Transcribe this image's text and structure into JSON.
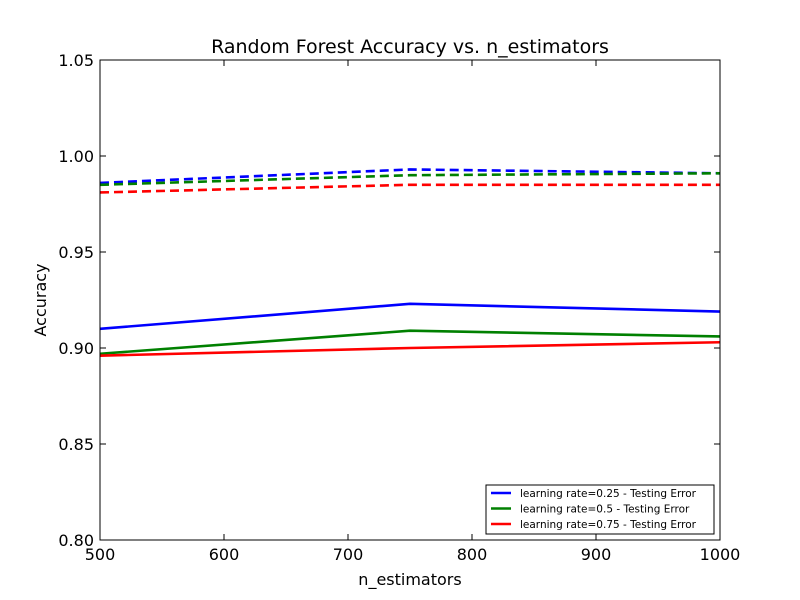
{
  "chart_data": {
    "type": "line",
    "title": "Random Forest Accuracy vs. n_estimators",
    "xlabel": "n_estimators",
    "ylabel": "Accuracy",
    "xlim": [
      500,
      1000
    ],
    "ylim": [
      0.8,
      1.05
    ],
    "xticks": [
      500,
      600,
      700,
      800,
      900,
      1000
    ],
    "yticks": [
      0.8,
      0.85,
      0.9,
      0.95,
      1.0,
      1.05
    ],
    "xtick_labels": [
      "500",
      "600",
      "700",
      "800",
      "900",
      "1000"
    ],
    "ytick_labels": [
      "0.80",
      "0.85",
      "0.90",
      "0.95",
      "1.00",
      "1.05"
    ],
    "grid": false,
    "legend_position": "bottom-right",
    "x": [
      500,
      750,
      1000
    ],
    "series": [
      {
        "name": "learning rate=0.25 - Testing Error",
        "color": "#0000ff",
        "style": "solid",
        "values": [
          0.91,
          0.923,
          0.919
        ]
      },
      {
        "name": "learning rate=0.5 - Testing Error",
        "color": "#008000",
        "style": "solid",
        "values": [
          0.897,
          0.909,
          0.906
        ]
      },
      {
        "name": "learning rate=0.75 - Testing Error",
        "color": "#ff0000",
        "style": "solid",
        "values": [
          0.896,
          0.9,
          0.903
        ]
      },
      {
        "color": "#0000ff",
        "style": "dashed",
        "values": [
          0.986,
          0.993,
          0.991
        ]
      },
      {
        "color": "#008000",
        "style": "dashed",
        "values": [
          0.985,
          0.99,
          0.991
        ]
      },
      {
        "color": "#ff0000",
        "style": "dashed",
        "values": [
          0.981,
          0.985,
          0.985
        ]
      }
    ]
  }
}
